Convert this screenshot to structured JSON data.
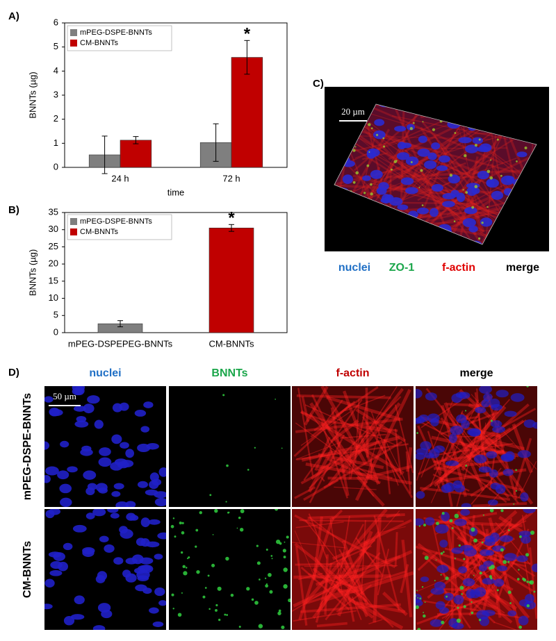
{
  "chart_data": [
    {
      "type": "bar",
      "y_label": "BNNTs (µg)",
      "x_label": "time",
      "categories": [
        "24 h",
        "72 h"
      ],
      "series": [
        {
          "name": "mPEG-DSPE-BNNTs",
          "color": "#7f7f7f",
          "values": [
            0.52,
            1.03
          ],
          "errors": [
            0.78,
            0.78
          ]
        },
        {
          "name": "CM-BNNTs",
          "color": "#c00000",
          "values": [
            1.13,
            4.57
          ],
          "errors": [
            0.15,
            0.7
          ]
        }
      ],
      "ylim": [
        0,
        6
      ],
      "yticks": [
        0,
        1,
        2,
        3,
        4,
        5,
        6
      ],
      "legend": "upper-left",
      "annotation": "*"
    },
    {
      "type": "bar",
      "y_label": "BNNTs (µg)",
      "categories": [
        "mPEG-DSPEPEG-BNNTs",
        "CM-BNNTs"
      ],
      "series": [
        {
          "name": "mPEG-DSPE-BNNTs",
          "color": "#7f7f7f",
          "values": [
            2.6,
            null
          ],
          "errors": [
            0.9,
            null
          ]
        },
        {
          "name": "CM-BNNTs",
          "color": "#c00000",
          "values": [
            null,
            30.5
          ],
          "errors": [
            null,
            1.0
          ]
        }
      ],
      "ylim": [
        0,
        35
      ],
      "yticks": [
        0,
        5,
        10,
        15,
        20,
        25,
        30,
        35
      ],
      "legend": "upper-left",
      "annotation": "*"
    }
  ],
  "panel_labels": [
    "A)",
    "B)",
    "C)",
    "D)"
  ],
  "panel_c": {
    "scale_bar": "20 µm",
    "channels": [
      "nuclei",
      "ZO-1",
      "f-actin",
      "merge"
    ]
  },
  "panel_d": {
    "columns": [
      "nuclei",
      "BNNTs",
      "f-actin",
      "merge"
    ],
    "rows": [
      "mPEG-DSPE-BNNTs",
      "CM-BNNTs"
    ],
    "scale_bar": "50 µm"
  }
}
